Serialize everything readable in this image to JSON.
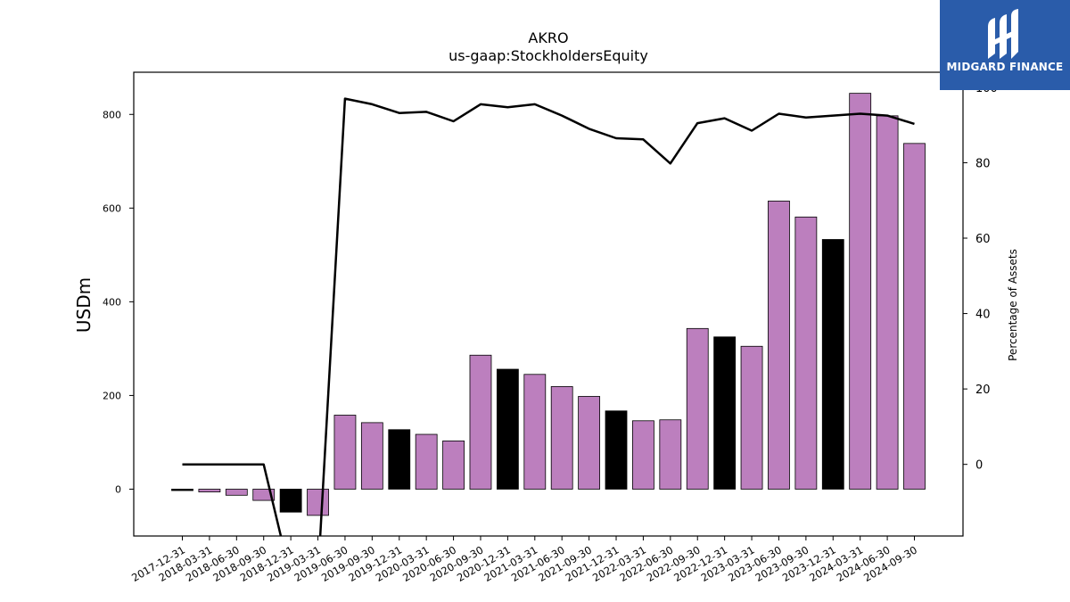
{
  "chart_data": {
    "type": "bar",
    "title": "AKRO",
    "subtitle": "us-gaap:StockholdersEquity",
    "ylabel": "USDm",
    "y2label": "Percentage of Assets",
    "ylim": [
      -100,
      890
    ],
    "y2lim": [
      -19,
      104
    ],
    "yticks": [
      0,
      200,
      400,
      600,
      800
    ],
    "y2ticks": [
      0,
      20,
      40,
      60,
      80,
      100
    ],
    "categories": [
      "2017-12-31",
      "2018-03-31",
      "2018-06-30",
      "2018-09-30",
      "2018-12-31",
      "2019-03-31",
      "2019-06-30",
      "2019-09-30",
      "2019-12-31",
      "2020-03-31",
      "2020-06-30",
      "2020-09-30",
      "2020-12-31",
      "2021-03-31",
      "2021-06-30",
      "2021-09-30",
      "2021-12-31",
      "2022-03-31",
      "2022-06-30",
      "2022-09-30",
      "2022-12-31",
      "2023-03-31",
      "2023-06-30",
      "2023-09-30",
      "2023-12-31",
      "2024-03-31",
      "2024-06-30",
      "2024-09-30"
    ],
    "series": [
      {
        "type": "bar",
        "values": [
          -3,
          -6,
          -13,
          -24,
          -49,
          -56,
          158,
          142,
          127,
          117,
          103,
          286,
          256,
          245,
          219,
          198,
          167,
          146,
          148,
          343,
          325,
          305,
          615,
          581,
          533,
          845,
          797,
          738
        ],
        "colors": [
          "#000000",
          "#bc7fbe",
          "#bc7fbe",
          "#bc7fbe",
          "#000000",
          "#bc7fbe",
          "#bc7fbe",
          "#bc7fbe",
          "#000000",
          "#bc7fbe",
          "#bc7fbe",
          "#bc7fbe",
          "#000000",
          "#bc7fbe",
          "#bc7fbe",
          "#bc7fbe",
          "#000000",
          "#bc7fbe",
          "#bc7fbe",
          "#bc7fbe",
          "#000000",
          "#bc7fbe",
          "#bc7fbe",
          "#bc7fbe",
          "#000000",
          "#bc7fbe",
          "#bc7fbe",
          "#bc7fbe"
        ]
      },
      {
        "type": "line",
        "axis": "right",
        "values": [
          0,
          0,
          0,
          0,
          -30,
          -30,
          97,
          95.5,
          93.2,
          93.5,
          91,
          95.5,
          94.7,
          95.5,
          92.5,
          89,
          86.5,
          86.2,
          79.8,
          90.5,
          91.8,
          88.5,
          93,
          92,
          92.5,
          93,
          92.5,
          90.3
        ],
        "color": "#000000"
      }
    ]
  },
  "colors": {
    "bar": "#bc7fbe",
    "bar_annual": "#000000",
    "line": "#000000"
  },
  "logo": {
    "text": "MIDGARD FINANCE",
    "background": "#2a5caa"
  }
}
